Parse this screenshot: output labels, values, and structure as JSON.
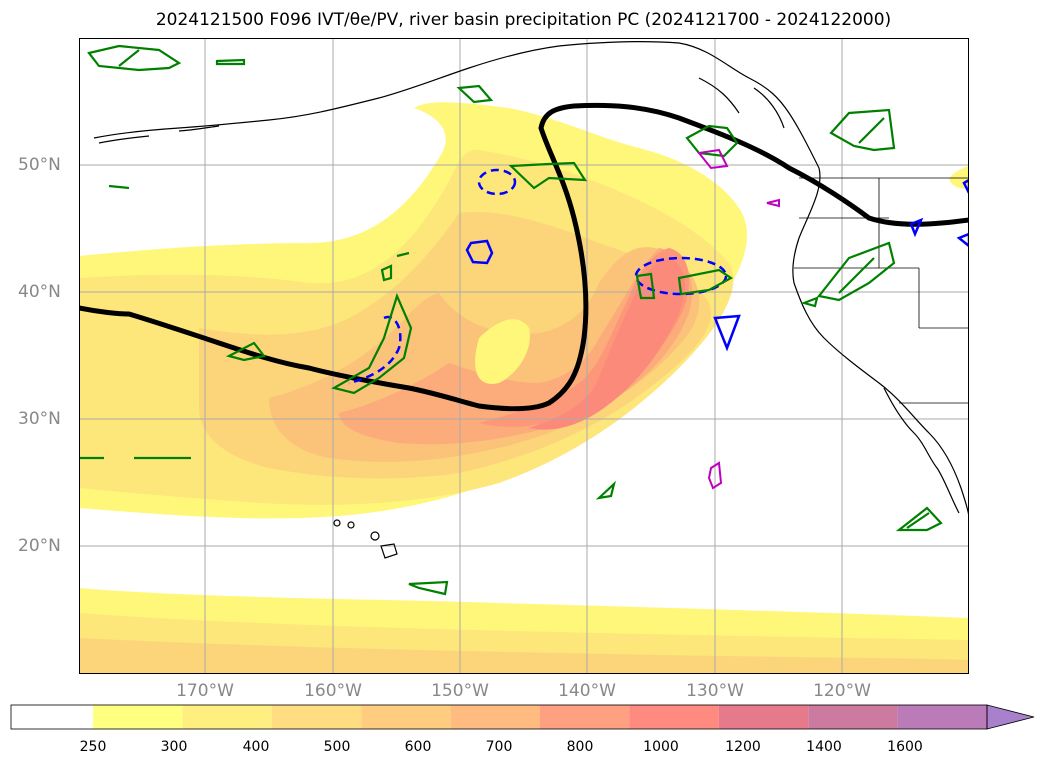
{
  "title": "2024121500 F096 IVT/θe/PV, river basin precipitation PC (2024121700 - 2024122000)",
  "map": {
    "lon_labels": [
      "170°W",
      "160°W",
      "150°W",
      "140°W",
      "130°W",
      "120°W"
    ],
    "lat_labels": [
      "50°N",
      "40°N",
      "30°N",
      "20°N"
    ],
    "gridlines": true,
    "layers": [
      "IVT filled contours",
      "theta-e contour (thick black)",
      "PV contours (blue dashed / blue solid)",
      "river basin precipitation PC outlines (green, magenta)",
      "coastlines and state borders"
    ]
  },
  "colorbar": {
    "ticks": [
      "250",
      "300",
      "400",
      "500",
      "600",
      "700",
      "800",
      "1000",
      "1200",
      "1400",
      "1600"
    ],
    "colors": [
      "#ffffff",
      "#ffff80",
      "#ffee80",
      "#ffdd80",
      "#ffcc80",
      "#ffbb80",
      "#ffa080",
      "#ff8a80",
      "#e67a8a",
      "#cc7aa0",
      "#bb7ab8",
      "#a880cc"
    ],
    "extend": "max"
  },
  "colors": {
    "ivt_250": "#ffff80",
    "ivt_300": "#fff07a",
    "ivt_400": "#fde07a",
    "ivt_500": "#fcca7a",
    "ivt_600": "#fbb37a",
    "ivt_700": "#fb9e7a",
    "ivt_800": "#fb8a7a",
    "theta_e": "#000000",
    "pv": "#0000ff",
    "basin_pc": "#008000",
    "basin_pc_alt": "#c000c0"
  }
}
